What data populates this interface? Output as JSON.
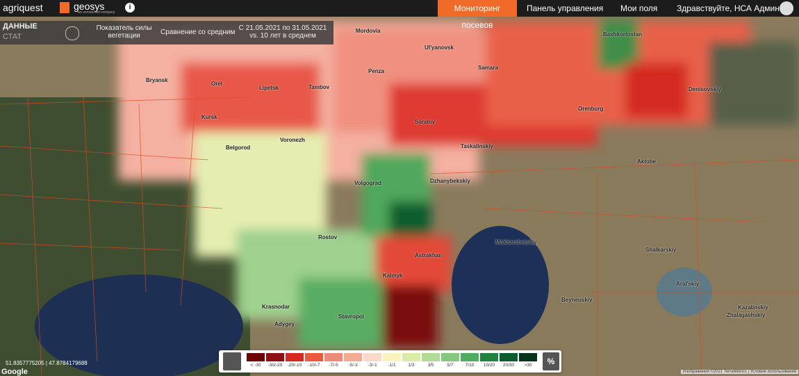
{
  "header": {
    "brand": "agriquest",
    "partner": "geosys",
    "partner_tagline": "an unmatched company",
    "info": "i",
    "nav": [
      "Мониторинг посевов",
      "Панель управления",
      "Мои поля",
      "Здравствуйте, НСА Админ 1"
    ]
  },
  "toolbar": {
    "section_top": "ДАННЫЕ",
    "section_bottom": "СТАТ",
    "indicator": "Показатель силы вегетации",
    "comparison": "Сравнение со средним",
    "period": "С 21.05.2021 по 31.05.2021 vs. 10 лет в среднем"
  },
  "map": {
    "labels": [
      "Bryansk",
      "Orel",
      "Kursk",
      "Belgorod",
      "Lipetsk",
      "Tambov",
      "Voronezh",
      "Penza",
      "Saratov",
      "Samara",
      "Orenburg",
      "Volgograd",
      "Rostov",
      "Astrakhan",
      "Kalmyk",
      "Stavropol",
      "Krasnodar",
      "Adygey",
      "Aktobe",
      "Denisovskiy",
      "Taskalinskiy",
      "Dzhanybekskiy",
      "Makhambetskiy",
      "Beyneuskiy",
      "Shalkarskiy",
      "Aral'skiy",
      "Kazalinskiy",
      "Zhalagashskiy",
      "Mordovia",
      "Bashkortostan",
      "Ul'yanovsk"
    ],
    "coordinates": "51.8357775205 | 47.8784179688",
    "google": "Google",
    "attribution": "Изображения ©2021 TerraMetrics | Условия использования"
  },
  "legend": {
    "items": [
      {
        "label": "< -30",
        "color": "#6e0505"
      },
      {
        "label": "-30/-20",
        "color": "#8e1010"
      },
      {
        "label": "-20/-10",
        "color": "#d6281e"
      },
      {
        "label": "-10/-7",
        "color": "#ea5a3e"
      },
      {
        "label": "-7/-5",
        "color": "#f08a78"
      },
      {
        "label": "-5/-3",
        "color": "#f4ab92"
      },
      {
        "label": "-3/-1",
        "color": "#fad8ca"
      },
      {
        "label": "-1/1",
        "color": "#faf3bf"
      },
      {
        "label": "1/3",
        "color": "#d9eba8"
      },
      {
        "label": "3/5",
        "color": "#b1dc97"
      },
      {
        "label": "5/7",
        "color": "#86c780"
      },
      {
        "label": "7/10",
        "color": "#52ac60"
      },
      {
        "label": "10/20",
        "color": "#21843e"
      },
      {
        "label": "20/30",
        "color": "#0c5d2e"
      },
      {
        "label": ">30",
        "color": "#07351b"
      }
    ],
    "unit": "%"
  }
}
